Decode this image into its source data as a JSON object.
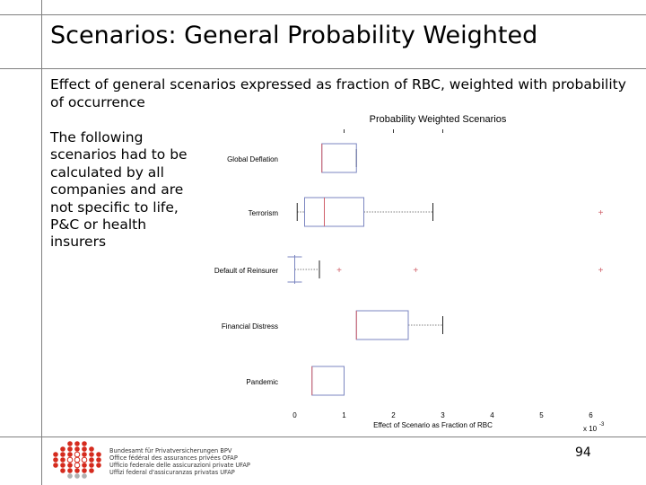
{
  "slide": {
    "title": "Scenarios: General Probability Weighted",
    "subtitle": "Effect of general scenarios expressed as fraction of RBC, weighted with probability of occurrence",
    "body": "The following scenarios had to be calculated by all companies and are not specific to life, P&C or health insurers",
    "page_number": "94"
  },
  "footer": {
    "agency_lines": [
      "Bundesamt für Privatversicherungen BPV",
      "Office fédéral des assurances privées OFAP",
      "Ufficio federale delle assicurazioni private UFAP",
      "Uffizi federal d'assicuranzas privatas UFAP"
    ]
  },
  "chart_data": {
    "type": "box",
    "title": "Probability Weighted Scenarios",
    "xlabel": "Effect of Scenario as Fraction of RBC",
    "x_multiplier": "x 10",
    "x_exponent": "-3",
    "xlim": [
      -0.3,
      6.3
    ],
    "x_ticks": [
      0,
      1,
      2,
      3,
      4,
      5,
      6
    ],
    "categories": [
      "Global Deflation",
      "Terrorism",
      "Default of Reinsurer",
      "Financial Distress",
      "Pandemic"
    ],
    "box_color": "#7b86c0",
    "median_color": "#d0606a",
    "boxes": [
      {
        "name": "Global Deflation",
        "whisker_low": 0.55,
        "q1": 0.55,
        "median": 0.55,
        "q3": 1.25,
        "whisker_high": 1.25,
        "outliers": []
      },
      {
        "name": "Terrorism",
        "whisker_low": 0.05,
        "q1": 0.2,
        "median": 0.6,
        "q3": 1.4,
        "whisker_high": 2.8,
        "outliers": [
          6.2
        ]
      },
      {
        "name": "Default of Reinsurer",
        "whisker_low": 0.0,
        "q1": 0.0,
        "median": 0.0,
        "q3": 0.0,
        "whisker_high": 0.5,
        "outliers": [
          0.9,
          2.45,
          6.2
        ]
      },
      {
        "name": "Financial Distress",
        "whisker_low": 1.25,
        "q1": 1.25,
        "median": 1.25,
        "q3": 2.3,
        "whisker_high": 3.0,
        "outliers": []
      },
      {
        "name": "Pandemic",
        "whisker_low": 0.35,
        "q1": 0.35,
        "median": 0.35,
        "q3": 1.0,
        "whisker_high": 1.0,
        "outliers": []
      }
    ]
  }
}
